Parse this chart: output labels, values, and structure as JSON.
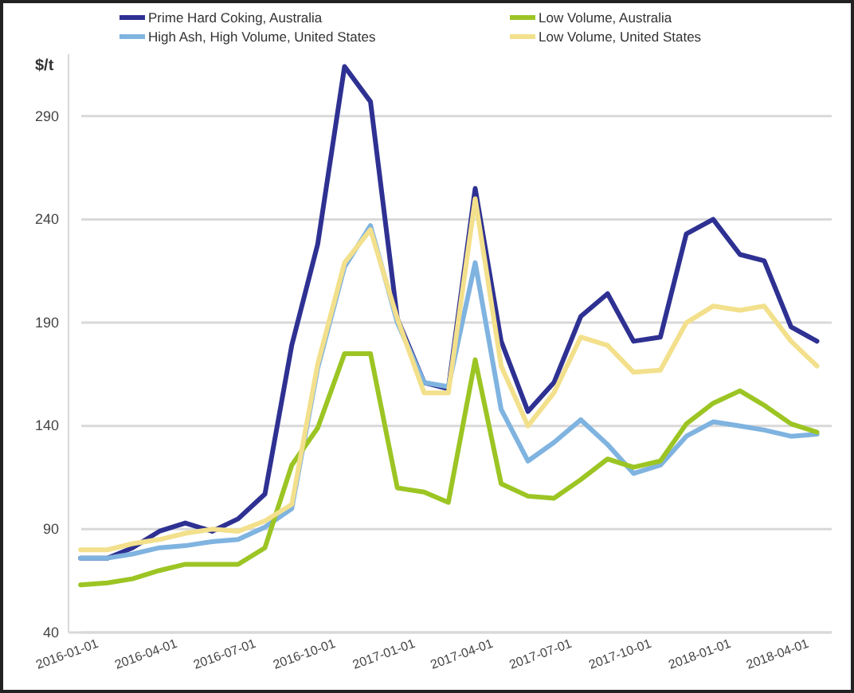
{
  "chart_data": {
    "type": "line",
    "ylabel": "$/t",
    "x": [
      "2016-01-15",
      "2016-02-15",
      "2016-03-15",
      "2016-04-15",
      "2016-05-15",
      "2016-06-15",
      "2016-07-15",
      "2016-08-15",
      "2016-09-15",
      "2016-10-15",
      "2016-11-15",
      "2016-12-15",
      "2017-01-15",
      "2017-02-15",
      "2017-03-15",
      "2017-04-15",
      "2017-05-15",
      "2017-06-15",
      "2017-07-15",
      "2017-08-15",
      "2017-09-15",
      "2017-10-15",
      "2017-11-15",
      "2017-12-15",
      "2018-01-15",
      "2018-02-15",
      "2018-03-15",
      "2018-04-15",
      "2018-05-15"
    ],
    "series": [
      {
        "name": "Prime Hard Coking, Australia",
        "color": "#2e3192",
        "values": [
          76,
          76,
          81,
          89,
          93,
          89,
          95,
          107,
          179,
          228,
          314,
          297,
          192,
          161,
          158,
          255,
          181,
          147,
          161,
          193,
          204,
          181,
          183,
          233,
          240,
          223,
          220,
          188,
          181
        ]
      },
      {
        "name": "High Ash, High Volume, United States",
        "color": "#7fb3e0",
        "values": [
          76,
          76,
          78,
          81,
          82,
          84,
          85,
          91,
          100,
          168,
          217,
          237,
          190,
          161,
          159,
          219,
          148,
          123,
          132,
          143,
          131,
          117,
          121,
          135,
          142,
          140,
          138,
          135,
          136
        ]
      },
      {
        "name": "Low Volume, Australia",
        "color": "#9cc524",
        "values": [
          63,
          64,
          66,
          70,
          73,
          73,
          73,
          81,
          121,
          139,
          175,
          175,
          110,
          108,
          103,
          172,
          112,
          106,
          105,
          114,
          124,
          120,
          123,
          141,
          151,
          157,
          150,
          141,
          137
        ]
      },
      {
        "name": "Low Volume, United States",
        "color": "#f3e08c",
        "values": [
          80,
          80,
          83,
          85,
          88,
          90,
          89,
          94,
          102,
          170,
          219,
          235,
          192,
          156,
          156,
          250,
          169,
          140,
          156,
          183,
          179,
          166,
          167,
          190,
          198,
          196,
          198,
          181,
          169
        ]
      }
    ],
    "xlim": [
      "2016-01-01",
      "2018-06-01"
    ],
    "xticks": [
      {
        "value": "2016-01-01",
        "label": "2016-01-01"
      },
      {
        "value": "2016-04-01",
        "label": "2016-04-01"
      },
      {
        "value": "2016-07-01",
        "label": "2016-07-01"
      },
      {
        "value": "2016-10-01",
        "label": "2016-10-01"
      },
      {
        "value": "2017-01-01",
        "label": "2017-01-01"
      },
      {
        "value": "2017-04-01",
        "label": "2017-04-01"
      },
      {
        "value": "2017-07-01",
        "label": "2017-07-01"
      },
      {
        "value": "2017-10-01",
        "label": "2017-10-01"
      },
      {
        "value": "2018-01-01",
        "label": "2018-01-01"
      },
      {
        "value": "2018-04-01",
        "label": "2018-04-01"
      }
    ],
    "ylim": [
      40,
      320
    ],
    "yticks": [
      40,
      90,
      140,
      190,
      240,
      290
    ],
    "grid": "y",
    "legend": "top",
    "marker": "none",
    "line_style": "solid"
  }
}
